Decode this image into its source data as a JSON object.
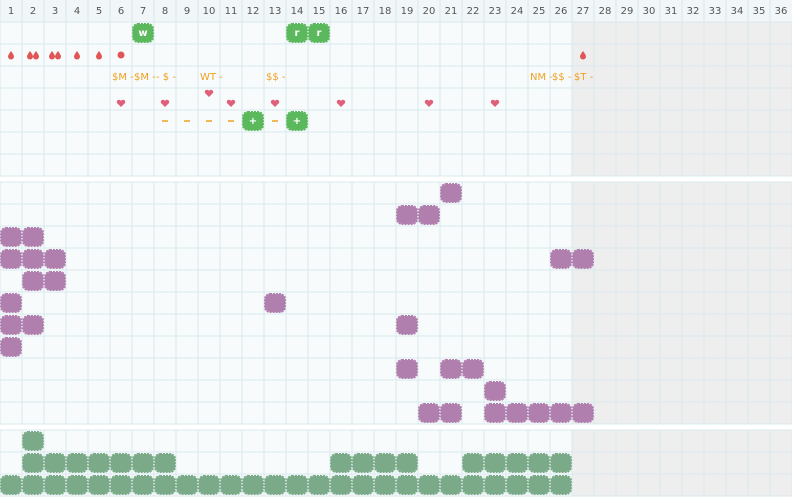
{
  "header": {
    "days": [
      "1",
      "2",
      "3",
      "4",
      "5",
      "6",
      "7",
      "8",
      "9",
      "10",
      "11",
      "12",
      "13",
      "14",
      "15",
      "16",
      "17",
      "18",
      "19",
      "20",
      "21",
      "22",
      "23",
      "24",
      "25",
      "26",
      "27",
      "28",
      "29",
      "30",
      "31",
      "32",
      "33",
      "34",
      "35",
      "36"
    ]
  },
  "tracker": {
    "badges": [
      {
        "day": 7,
        "label": "w"
      },
      {
        "day": 14,
        "label": "r"
      },
      {
        "day": 15,
        "label": "r"
      }
    ],
    "drops": [
      {
        "day": 1,
        "count": 1
      },
      {
        "day": 2,
        "count": 2
      },
      {
        "day": 3,
        "count": 2
      },
      {
        "day": 4,
        "count": 1
      },
      {
        "day": 5,
        "count": 1
      },
      {
        "day": 27,
        "count": 1
      }
    ],
    "dots": [
      6
    ],
    "notes": [
      {
        "day": 6,
        "label": "$M -"
      },
      {
        "day": 7,
        "label": "$M -"
      },
      {
        "day": 8,
        "label": "- $ -"
      },
      {
        "day": 10,
        "label": "WT -"
      },
      {
        "day": 13,
        "label": "$$ -"
      },
      {
        "day": 25,
        "label": "NM -"
      },
      {
        "day": 26,
        "label": "$$ -"
      },
      {
        "day": 27,
        "label": "$T -"
      }
    ],
    "hearts": [
      6,
      8,
      10,
      11,
      13,
      16,
      20,
      23
    ],
    "dashes": [
      8,
      9,
      10,
      11,
      13
    ],
    "plus": [
      {
        "day": 12,
        "label": "+"
      },
      {
        "day": 14,
        "label": "+"
      }
    ]
  },
  "purple_rows": [
    [
      21
    ],
    [
      19,
      20
    ],
    [
      1,
      2
    ],
    [
      1,
      2,
      3,
      26,
      27
    ],
    [
      2,
      3
    ],
    [
      1,
      13
    ],
    [
      1,
      2,
      19
    ],
    [
      1
    ],
    [
      19,
      21,
      22
    ],
    [
      23
    ],
    [
      20,
      21,
      23,
      24,
      25,
      26,
      27
    ]
  ],
  "green_rows": [
    [
      2
    ],
    [
      2,
      3,
      4,
      5,
      6,
      7,
      8,
      16,
      17,
      18,
      19,
      22,
      23,
      24,
      25,
      26
    ],
    [
      1,
      2,
      3,
      4,
      5,
      6,
      7,
      8,
      9,
      10,
      11,
      12,
      13,
      14,
      15,
      16,
      17,
      18,
      19,
      20,
      21,
      22,
      23,
      24,
      25,
      26
    ]
  ]
}
